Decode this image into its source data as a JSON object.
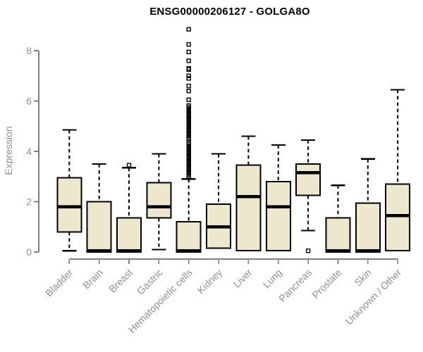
{
  "chart_data": {
    "type": "boxplot",
    "title": "ENSG00000206127 - GOLGA8O",
    "xlabel": "",
    "ylabel": "Expression",
    "ylim": [
      0,
      9
    ],
    "yticks": [
      0,
      2,
      4,
      6,
      8
    ],
    "grid": false,
    "legend": null,
    "categories": [
      "Bladder",
      "Brain",
      "Breast",
      "Gastric",
      "Hematopoietic cells",
      "Kidney",
      "Liver",
      "Lung",
      "Pancreas",
      "Prostate",
      "Skin",
      "Unknown / Other"
    ],
    "series": [
      {
        "name": "Bladder",
        "whisker_low": 0.05,
        "q1": 0.8,
        "median": 1.8,
        "q3": 2.95,
        "whisker_high": 4.85,
        "outliers": []
      },
      {
        "name": "Brain",
        "whisker_low": 0.0,
        "q1": 0.0,
        "median": 0.05,
        "q3": 2.0,
        "whisker_high": 3.5,
        "outliers": []
      },
      {
        "name": "Breast",
        "whisker_low": 0.0,
        "q1": 0.0,
        "median": 0.05,
        "q3": 1.35,
        "whisker_high": 3.35,
        "outliers": [
          3.45
        ]
      },
      {
        "name": "Gastric",
        "whisker_low": 0.1,
        "q1": 1.35,
        "median": 1.8,
        "q3": 2.75,
        "whisker_high": 3.9,
        "outliers": []
      },
      {
        "name": "Hematopoietic cells",
        "whisker_low": 0.0,
        "q1": 0.0,
        "median": 0.05,
        "q3": 1.2,
        "whisker_high": 2.9,
        "outliers": [
          2.95,
          3.02,
          3.08,
          3.14,
          3.2,
          3.26,
          3.32,
          3.38,
          3.44,
          3.5,
          3.56,
          3.62,
          3.68,
          3.74,
          3.8,
          3.86,
          3.92,
          3.98,
          4.04,
          4.1,
          4.16,
          4.22,
          4.28,
          4.34,
          4.42,
          4.5,
          4.56,
          4.62,
          4.68,
          4.74,
          4.8,
          4.86,
          4.92,
          4.98,
          5.04,
          5.1,
          5.16,
          5.22,
          5.28,
          5.34,
          5.4,
          5.46,
          5.52,
          5.58,
          5.64,
          5.7,
          5.76,
          5.82,
          6.05,
          6.4,
          6.6,
          6.9,
          7.0,
          7.25,
          7.3,
          7.6,
          7.95,
          8.25,
          8.85
        ]
      },
      {
        "name": "Kidney",
        "whisker_low": 0.15,
        "q1": 0.15,
        "median": 1.0,
        "q3": 1.9,
        "whisker_high": 3.9,
        "outliers": []
      },
      {
        "name": "Liver",
        "whisker_low": 0.05,
        "q1": 0.05,
        "median": 2.2,
        "q3": 3.45,
        "whisker_high": 4.6,
        "outliers": []
      },
      {
        "name": "Lung",
        "whisker_low": 0.05,
        "q1": 0.05,
        "median": 1.8,
        "q3": 2.8,
        "whisker_high": 4.25,
        "outliers": []
      },
      {
        "name": "Pancreas",
        "whisker_low": 0.85,
        "q1": 2.25,
        "median": 3.15,
        "q3": 3.5,
        "whisker_high": 4.45,
        "outliers": [
          0.05
        ]
      },
      {
        "name": "Prostate",
        "whisker_low": 0.0,
        "q1": 0.0,
        "median": 0.05,
        "q3": 1.35,
        "whisker_high": 2.65,
        "outliers": []
      },
      {
        "name": "Skin",
        "whisker_low": 0.0,
        "q1": 0.0,
        "median": 0.05,
        "q3": 1.95,
        "whisker_high": 3.7,
        "outliers": []
      },
      {
        "name": "Unknown / Other",
        "whisker_low": 0.05,
        "q1": 0.05,
        "median": 1.45,
        "q3": 2.7,
        "whisker_high": 6.45,
        "outliers": []
      }
    ],
    "colors": {
      "box_fill": "#EDE8CD",
      "box_border": "#000000",
      "median": "#000000",
      "whisker": "#000000",
      "outlier": "#000000",
      "axis": "#7f7f7f",
      "axis_label": "#8f8f8f",
      "title": "#000000",
      "background": "#ffffff"
    }
  }
}
